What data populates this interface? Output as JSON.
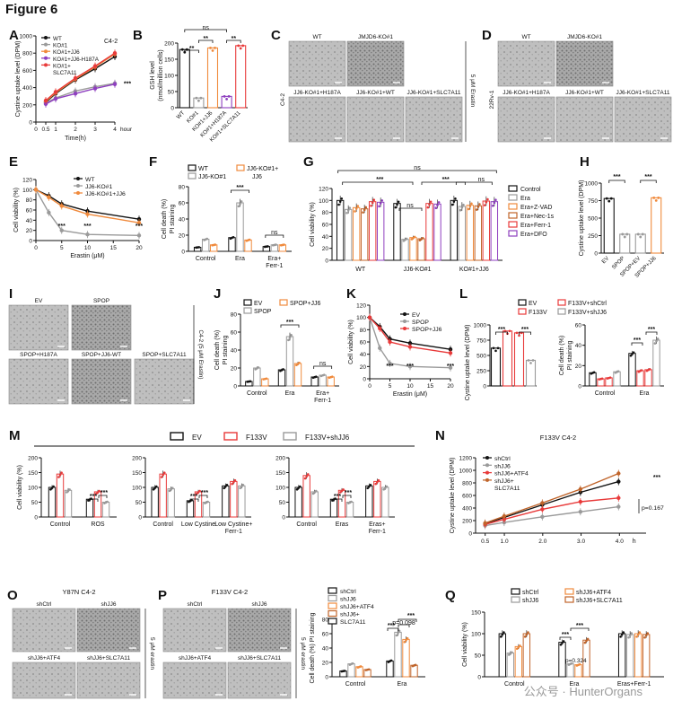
{
  "figure_title": "Figure 6",
  "watermark": "公众号 · HunterOrgans",
  "colors": {
    "black": "#111111",
    "gray": "#9a9a9a",
    "orange": "#f08a3c",
    "red": "#e83a3a",
    "purple": "#8e3fbf",
    "lightgray": "#c8c8c8",
    "darkorange": "#c0642a",
    "micro_bg": "#bcbcbc"
  },
  "panels": {
    "A": {
      "label": "A",
      "tag": "C4-2",
      "ylabel": "Cystine uptake level (DPM)",
      "xlabel": "Time(h)",
      "hour": "hour",
      "xticks": [
        "0",
        "0.5",
        "1",
        "2",
        "3",
        "4"
      ],
      "yticks": [
        "0",
        "200",
        "400",
        "600",
        "800",
        "1000"
      ],
      "legend": [
        "WT",
        "KO#1",
        "KO#1+JJ6",
        "KO#1+JJ6-H187A",
        "KO#1+",
        "SLC7A11"
      ],
      "sig": "***"
    },
    "B": {
      "label": "B",
      "ylabel": "GSH level",
      "ylabel2": "(nmol/million cells)",
      "yticks": [
        "0",
        "50",
        "100",
        "150",
        "200"
      ],
      "categories": [
        "WT",
        "KO#1",
        "KO#1+JJ6",
        "KO#1+H187A",
        "KO#1+SLC7A11"
      ],
      "values": [
        180,
        30,
        185,
        35,
        192
      ],
      "sig": [
        "**",
        "**",
        "ns",
        "**"
      ]
    },
    "C": {
      "label": "C",
      "side": "C4-2",
      "erastin": "5 μM Erastin",
      "top": [
        "WT",
        "JMJD6-KO#1"
      ],
      "bottom": [
        "JJ6-KO#1+H187A",
        "JJ6-KO#1+WT",
        "JJ6-KO#1+SLC7A11"
      ]
    },
    "D": {
      "label": "D",
      "side": "22Rv-1",
      "erastin": "5 μM Erastin",
      "top": [
        "WT",
        "JMJD6-KO#1"
      ],
      "bottom": [
        "JJ6-KO#1+H187A",
        "JJ6-KO#1+WT",
        "JJ6-KO#1+SLC7A11"
      ]
    },
    "E": {
      "label": "E",
      "ylabel": "Cell viability (%)",
      "xlabel": "Erastin (μM)",
      "xticks": [
        "0",
        "5",
        "10",
        "15",
        "20"
      ],
      "yticks": [
        "0",
        "20",
        "40",
        "60",
        "80",
        "100",
        "120"
      ],
      "legend": [
        "WT",
        "JJ6-KO#1",
        "JJ6-KO#1+JJ6"
      ],
      "sig": [
        "***",
        "***",
        "***"
      ]
    },
    "F": {
      "label": "F",
      "ylabel": "Cell death (%)",
      "ylabel2": "PI staining",
      "yticks": [
        "0",
        "20",
        "40",
        "60",
        "80"
      ],
      "groups": [
        "Control",
        "Era",
        "Era+",
        "Ferr-1"
      ],
      "legend": [
        "WT",
        "JJ6-KO#1",
        "JJ6-KO#1+",
        "JJ6"
      ],
      "sig": [
        "***",
        "ns"
      ]
    },
    "G": {
      "label": "G",
      "ylabel": "Cell viability (%)",
      "yticks": [
        "0",
        "20",
        "40",
        "60",
        "80",
        "100",
        "120"
      ],
      "groups": [
        "WT",
        "JJ6-KO#1",
        "KO#1+JJ6"
      ],
      "legend": [
        "Control",
        "Era",
        "Era+Z-VAD",
        "Era+Nec-1s",
        "Era+Ferr-1",
        "Era+DFO"
      ],
      "sig": [
        "ns",
        "***",
        "***",
        "ns",
        "ns"
      ]
    },
    "H": {
      "label": "H",
      "ylabel": "Cystine uptake level (DPM)",
      "yticks": [
        "0",
        "250",
        "500",
        "750",
        "1000"
      ],
      "categories": [
        "EV",
        "SPOP",
        "SPOP+EV",
        "SPOP+JJ6"
      ],
      "values": [
        780,
        270,
        270,
        790
      ],
      "sig": [
        "***",
        "***"
      ]
    },
    "I": {
      "label": "I",
      "side": "C4-2 (5 μM Erastin)",
      "top": [
        "EV",
        "SPOP"
      ],
      "bottom": [
        "SPOP+H187A",
        "SPOP+JJ6-WT",
        "SPOP+SLC7A11"
      ]
    },
    "J": {
      "label": "J",
      "ylabel": "Cell death (%)",
      "ylabel2": "PI staining",
      "yticks": [
        "0",
        "20",
        "40",
        "60",
        "80"
      ],
      "groups": [
        "Control",
        "Era",
        "Era+",
        "Ferr-1"
      ],
      "legend": [
        "EV",
        "SPOP",
        "SPOP+JJ6"
      ],
      "sig": [
        "***",
        "ns"
      ]
    },
    "K": {
      "label": "K",
      "ylabel": "Cell viability (%)",
      "xlabel": "Erastin (μM)",
      "xticks": [
        "0",
        "5",
        "10",
        "15",
        "20"
      ],
      "yticks": [
        "0",
        "20",
        "40",
        "60",
        "80",
        "100",
        "120"
      ],
      "legend": [
        "EV",
        "SPOP",
        "SPOP+JJ6"
      ],
      "sig": [
        "***",
        "***",
        "***"
      ]
    },
    "L": {
      "label": "L",
      "ylabel": "Cystine uptake level (DPM)",
      "ylabel_b": "Cell death (%)",
      "ylabel_b2": "PI staining",
      "yticks": [
        "0",
        "250",
        "500",
        "750",
        "1000"
      ],
      "yticks_b": [
        "0",
        "20",
        "40",
        "60"
      ],
      "groups": [
        "Control",
        "Era"
      ],
      "legend": [
        "EV",
        "F133V",
        "F133V+shCtrl",
        "F133V+shJJ6"
      ],
      "sig": [
        "***",
        "***",
        "***",
        "***"
      ]
    },
    "M": {
      "label": "M",
      "ylabel": "Cell viability (%)",
      "yticks": [
        "0",
        "50",
        "100",
        "150",
        "200"
      ],
      "legend": [
        "EV",
        "F133V",
        "F133V+shJJ6"
      ],
      "groups": [
        "Control",
        "ROS",
        "Control",
        "Low Cystine",
        "Low Cystine+",
        "Ferr-1",
        "Control",
        "Eras",
        "Eras+",
        "Ferr-1"
      ],
      "sig": "***"
    },
    "N": {
      "label": "N",
      "title": "F133V C4-2",
      "ylabel": "Cystine uptake level (DPM)",
      "xticks": [
        "0.5",
        "1.0",
        "2.0",
        "3.0",
        "4.0"
      ],
      "h": "h",
      "yticks": [
        "0",
        "200",
        "400",
        "600",
        "800",
        "1000",
        "1200"
      ],
      "legend": [
        "shCtrl",
        "shJJ6",
        "shJJ6+ATF4",
        "shJJ6+",
        "SLC7A11"
      ],
      "sig": "***",
      "p": "p=0.167"
    },
    "O": {
      "label": "O",
      "title": "Y87N C4-2",
      "erastin": "5 μM erastin",
      "top": [
        "shCtrl",
        "shJJ6"
      ],
      "bottom": [
        "shJJ6+ATF4",
        "shJJ6+SLC7A11"
      ]
    },
    "P": {
      "label": "P",
      "title": "F133V C4-2",
      "erastin": "5 μM erastin",
      "top": [
        "shCtrl",
        "shJJ6"
      ],
      "bottom": [
        "shJJ6+ATF4",
        "shJJ6+SLC7A11"
      ],
      "ylabel": "Cell death (%) PI staining",
      "yticks": [
        "0",
        "20",
        "40",
        "60",
        "80"
      ],
      "groups": [
        "Control",
        "Era"
      ],
      "legend": [
        "shCtrl",
        "shJJ6",
        "shJJ6+ATF4",
        "shJJ6+",
        "SLC7A11"
      ],
      "sig": [
        "***",
        "***",
        "***"
      ],
      "p": "p=0.098"
    },
    "Q": {
      "label": "Q",
      "ylabel": "Cell viability (%)",
      "yticks": [
        "0",
        "50",
        "100",
        "150"
      ],
      "groups": [
        "Control",
        "Era",
        "Eras+Ferr-1"
      ],
      "legend": [
        "shCtrl",
        "shJJ6",
        "shJJ6+ATF4",
        "shJJ6+SLC7A11"
      ],
      "sig": [
        "***",
        "***",
        "***"
      ],
      "p": "p=0.324"
    }
  },
  "chart_data": [
    {
      "type": "line",
      "panel": "A",
      "title": "C4-2",
      "x": [
        0.5,
        1,
        2,
        3,
        4
      ],
      "series": [
        {
          "name": "WT",
          "values": [
            230,
            330,
            490,
            620,
            760
          ]
        },
        {
          "name": "KO#1",
          "values": [
            220,
            280,
            360,
            410,
            450
          ]
        },
        {
          "name": "KO#1+JJ6",
          "values": [
            240,
            340,
            500,
            640,
            790
          ]
        },
        {
          "name": "KO#1+JJ6-H187A",
          "values": [
            210,
            270,
            330,
            390,
            440
          ]
        },
        {
          "name": "KO#1+SLC7A11",
          "values": [
            250,
            350,
            510,
            650,
            800
          ]
        }
      ],
      "xlabel": "Time(h)",
      "ylabel": "Cystine uptake level (DPM)",
      "ylim": [
        0,
        1000
      ]
    },
    {
      "type": "bar",
      "panel": "B",
      "categories": [
        "WT",
        "KO#1",
        "KO#1+JJ6",
        "KO#1+H187A",
        "KO#1+SLC7A11"
      ],
      "values": [
        180,
        30,
        185,
        35,
        192
      ],
      "ylim": [
        0,
        220
      ]
    },
    {
      "type": "line",
      "panel": "E",
      "x": [
        0,
        2.5,
        5,
        10,
        20
      ],
      "series": [
        {
          "name": "WT",
          "values": [
            100,
            88,
            72,
            58,
            42
          ]
        },
        {
          "name": "JJ6-KO#1",
          "values": [
            100,
            55,
            20,
            12,
            10
          ]
        },
        {
          "name": "JJ6-KO#1+JJ6",
          "values": [
            100,
            85,
            68,
            52,
            35
          ]
        }
      ],
      "ylim": [
        0,
        120
      ]
    },
    {
      "type": "bar",
      "panel": "F",
      "categories": [
        "Control",
        "Era",
        "Era+Ferr-1"
      ],
      "series": [
        {
          "name": "WT",
          "values": [
            5,
            17,
            6
          ]
        },
        {
          "name": "JJ6-KO#1",
          "values": [
            15,
            60,
            8
          ]
        },
        {
          "name": "JJ6-KO#1+JJ6",
          "values": [
            8,
            14,
            8
          ]
        }
      ],
      "ylim": [
        0,
        80
      ]
    },
    {
      "type": "bar",
      "panel": "G",
      "categories": [
        "WT",
        "JJ6-KO#1",
        "KO#1+JJ6"
      ],
      "series": [
        {
          "name": "Control",
          "values": [
            100,
            95,
            100
          ]
        },
        {
          "name": "Era",
          "values": [
            85,
            35,
            90
          ]
        },
        {
          "name": "Era+Z-VAD",
          "values": [
            88,
            38,
            92
          ]
        },
        {
          "name": "Era+Nec-1s",
          "values": [
            86,
            36,
            91
          ]
        },
        {
          "name": "Era+Ferr-1",
          "values": [
            98,
            95,
            99
          ]
        },
        {
          "name": "Era+DFO",
          "values": [
            97,
            94,
            98
          ]
        }
      ],
      "ylim": [
        0,
        120
      ]
    },
    {
      "type": "bar",
      "panel": "H",
      "categories": [
        "EV",
        "SPOP",
        "SPOP+EV",
        "SPOP+JJ6"
      ],
      "values": [
        780,
        270,
        270,
        790
      ],
      "ylim": [
        0,
        1000
      ]
    },
    {
      "type": "bar",
      "panel": "J",
      "categories": [
        "Control",
        "Era",
        "Era+Ferr-1"
      ],
      "series": [
        {
          "name": "EV",
          "values": [
            5,
            18,
            10
          ]
        },
        {
          "name": "SPOP",
          "values": [
            20,
            55,
            12
          ]
        },
        {
          "name": "SPOP+JJ6",
          "values": [
            8,
            25,
            10
          ]
        }
      ],
      "ylim": [
        0,
        80
      ]
    },
    {
      "type": "line",
      "panel": "K",
      "x": [
        0,
        2.5,
        5,
        10,
        20
      ],
      "series": [
        {
          "name": "EV",
          "values": [
            100,
            85,
            65,
            58,
            48
          ]
        },
        {
          "name": "SPOP",
          "values": [
            100,
            50,
            25,
            20,
            18
          ]
        },
        {
          "name": "SPOP+JJ6",
          "values": [
            100,
            82,
            60,
            52,
            42
          ]
        }
      ],
      "ylim": [
        0,
        120
      ]
    },
    {
      "type": "bar",
      "panel": "L1",
      "categories": [
        "EV",
        "F133V",
        "F133V+shCtrl",
        "F133V+shJJ6"
      ],
      "values": [
        620,
        900,
        870,
        420
      ],
      "ylim": [
        0,
        1000
      ]
    },
    {
      "type": "bar",
      "panel": "L2",
      "categories": [
        "Control",
        "Era"
      ],
      "series": [
        {
          "name": "EV",
          "values": [
            13,
            32
          ]
        },
        {
          "name": "F133V",
          "values": [
            7,
            15
          ]
        },
        {
          "name": "F133V+shCtrl",
          "values": [
            8,
            16
          ]
        },
        {
          "name": "F133V+shJJ6",
          "values": [
            14,
            45
          ]
        }
      ],
      "ylim": [
        0,
        60
      ]
    },
    {
      "type": "bar",
      "panel": "M",
      "categories": [
        "Control",
        "ROS",
        "Control",
        "Low Cystine",
        "Low Cystine+Ferr-1",
        "Control",
        "Eras",
        "Eras+Ferr-1"
      ],
      "series": [
        {
          "name": "EV",
          "values": [
            100,
            60,
            100,
            55,
            105,
            100,
            60,
            105
          ]
        },
        {
          "name": "F133V",
          "values": [
            145,
            85,
            145,
            85,
            120,
            140,
            90,
            120
          ]
        },
        {
          "name": "F133V+shJJ6",
          "values": [
            90,
            50,
            95,
            50,
            105,
            85,
            50,
            100
          ]
        }
      ],
      "ylim": [
        0,
        200
      ]
    },
    {
      "type": "line",
      "panel": "N",
      "x": [
        0.5,
        1,
        2,
        3,
        4
      ],
      "series": [
        {
          "name": "shCtrl",
          "values": [
            150,
            250,
            450,
            650,
            820
          ]
        },
        {
          "name": "shJJ6",
          "values": [
            120,
            170,
            260,
            340,
            420
          ]
        },
        {
          "name": "shJJ6+ATF4",
          "values": [
            140,
            220,
            380,
            500,
            560
          ]
        },
        {
          "name": "shJJ6+SLC7A11",
          "values": [
            160,
            270,
            480,
            700,
            950
          ]
        }
      ],
      "ylim": [
        0,
        1200
      ]
    },
    {
      "type": "bar",
      "panel": "P",
      "categories": [
        "Control",
        "Era"
      ],
      "series": [
        {
          "name": "shCtrl",
          "values": [
            8,
            22
          ]
        },
        {
          "name": "shJJ6",
          "values": [
            18,
            62
          ]
        },
        {
          "name": "shJJ6+ATF4",
          "values": [
            14,
            52
          ]
        },
        {
          "name": "shJJ6+SLC7A11",
          "values": [
            10,
            16
          ]
        }
      ],
      "ylim": [
        0,
        80
      ]
    },
    {
      "type": "bar",
      "panel": "Q",
      "categories": [
        "Control",
        "Era",
        "Eras+Ferr-1"
      ],
      "series": [
        {
          "name": "shCtrl",
          "values": [
            100,
            80,
            100
          ]
        },
        {
          "name": "shJJ6",
          "values": [
            55,
            30,
            98
          ]
        },
        {
          "name": "shJJ6+ATF4",
          "values": [
            70,
            28,
            100
          ]
        },
        {
          "name": "shJJ6+SLC7A11",
          "values": [
            100,
            85,
            98
          ]
        }
      ],
      "ylim": [
        0,
        150
      ]
    }
  ]
}
